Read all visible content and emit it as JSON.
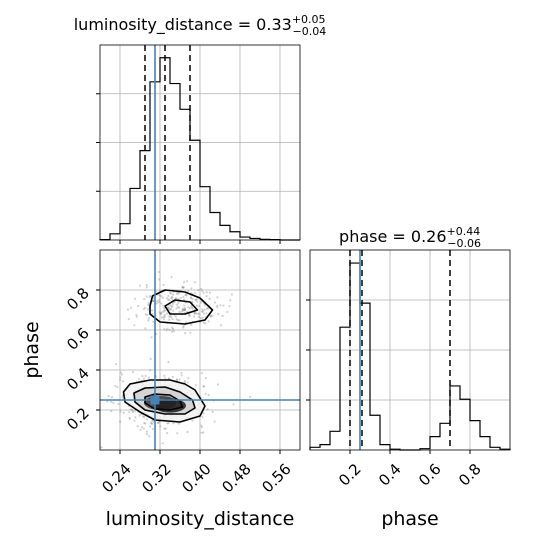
{
  "chart_data": {
    "type": "corner",
    "parameters": [
      "luminosity_distance",
      "phase"
    ],
    "titles": [
      {
        "param": "luminosity_distance",
        "prefix": "luminosity_distance = ",
        "median": "0.33",
        "plus": "+0.05",
        "minus": "−0.04"
      },
      {
        "param": "phase",
        "prefix": "phase = ",
        "median": "0.26",
        "plus": "+0.44",
        "minus": "−0.06"
      }
    ],
    "xlabels": [
      "luminosity_distance",
      "phase"
    ],
    "ylabel": "phase",
    "ranges": {
      "luminosity_distance": [
        0.2,
        0.6
      ],
      "phase": [
        0.0,
        1.0
      ]
    },
    "ticks": {
      "luminosity_distance": [
        0.24,
        0.32,
        0.4,
        0.48,
        0.56
      ],
      "luminosity_distance_labels": [
        "0.24",
        "0.32",
        "0.40",
        "0.48",
        "0.56"
      ],
      "phase": [
        0.2,
        0.4,
        0.6,
        0.8
      ],
      "phase_labels": [
        "0.2",
        "0.4",
        "0.6",
        "0.8"
      ]
    },
    "truth": {
      "luminosity_distance": 0.31,
      "phase": 0.25
    },
    "quantiles": {
      "luminosity_distance": [
        0.29,
        0.33,
        0.38
      ],
      "phase": [
        0.2,
        0.26,
        0.7
      ]
    },
    "hist_luminosity_distance": {
      "bin_edges": [
        0.2,
        0.22,
        0.24,
        0.26,
        0.28,
        0.3,
        0.32,
        0.34,
        0.36,
        0.38,
        0.4,
        0.42,
        0.44,
        0.46,
        0.48,
        0.5,
        0.52,
        0.54,
        0.56,
        0.58,
        0.6
      ],
      "counts": [
        0.2,
        3.6,
        9.5,
        30,
        52,
        92,
        106,
        91,
        76,
        58,
        31,
        16,
        8.5,
        4.8,
        1.7,
        0.9,
        0.4,
        0.2,
        0,
        0
      ]
    },
    "hist_phase": {
      "bin_edges": [
        0.0,
        0.05,
        0.1,
        0.15,
        0.2,
        0.25,
        0.3,
        0.35,
        0.4,
        0.45,
        0.5,
        0.55,
        0.6,
        0.65,
        0.7,
        0.75,
        0.8,
        0.85,
        0.9,
        0.95,
        1.0
      ],
      "counts": [
        1,
        2,
        7,
        46,
        70,
        55,
        13,
        2,
        0.3,
        0,
        0,
        0.5,
        5,
        10,
        24,
        19,
        11,
        5,
        1,
        0.3
      ]
    },
    "contours": [
      {
        "level": "outer",
        "points": [
          [
            0.247,
            0.29
          ],
          [
            0.26,
            0.33
          ],
          [
            0.3,
            0.35
          ],
          [
            0.34,
            0.35
          ],
          [
            0.37,
            0.33
          ],
          [
            0.39,
            0.3
          ],
          [
            0.4,
            0.26
          ],
          [
            0.41,
            0.22
          ],
          [
            0.4,
            0.17
          ],
          [
            0.36,
            0.14
          ],
          [
            0.31,
            0.15
          ],
          [
            0.28,
            0.19
          ],
          [
            0.25,
            0.24
          ]
        ]
      },
      {
        "level": "middle",
        "points": [
          [
            0.268,
            0.285
          ],
          [
            0.29,
            0.31
          ],
          [
            0.33,
            0.315
          ],
          [
            0.36,
            0.29
          ],
          [
            0.385,
            0.25
          ],
          [
            0.39,
            0.21
          ],
          [
            0.37,
            0.18
          ],
          [
            0.33,
            0.18
          ],
          [
            0.29,
            0.2
          ],
          [
            0.27,
            0.24
          ]
        ]
      },
      {
        "level": "inner",
        "points": [
          [
            0.29,
            0.265
          ],
          [
            0.31,
            0.28
          ],
          [
            0.34,
            0.275
          ],
          [
            0.36,
            0.245
          ],
          [
            0.365,
            0.215
          ],
          [
            0.34,
            0.2
          ],
          [
            0.31,
            0.205
          ],
          [
            0.29,
            0.235
          ]
        ]
      },
      {
        "level": "upper-outer",
        "points": [
          [
            0.3,
            0.72
          ],
          [
            0.305,
            0.77
          ],
          [
            0.33,
            0.8
          ],
          [
            0.37,
            0.79
          ],
          [
            0.4,
            0.76
          ],
          [
            0.425,
            0.7
          ],
          [
            0.41,
            0.65
          ],
          [
            0.37,
            0.63
          ],
          [
            0.32,
            0.64
          ],
          [
            0.3,
            0.68
          ]
        ]
      },
      {
        "level": "upper-inner",
        "points": [
          [
            0.33,
            0.72
          ],
          [
            0.35,
            0.75
          ],
          [
            0.38,
            0.74
          ],
          [
            0.395,
            0.7
          ],
          [
            0.37,
            0.68
          ],
          [
            0.34,
            0.68
          ]
        ]
      }
    ],
    "density_cores": [
      {
        "x": 0.32,
        "y": 0.235,
        "color": "#3f3f3f"
      },
      {
        "x": 0.34,
        "y": 0.222,
        "color": "#1c1c1c"
      }
    ],
    "colors": {
      "truth": "#4682b4",
      "line": "#000000",
      "grid": "#b0b0b0",
      "scatter": "#7f7f7f",
      "fill_outer": "#f2f2f2",
      "fill_middle": "#cfcfcf",
      "fill_inner": "#8f8f8f"
    },
    "grid": true
  }
}
